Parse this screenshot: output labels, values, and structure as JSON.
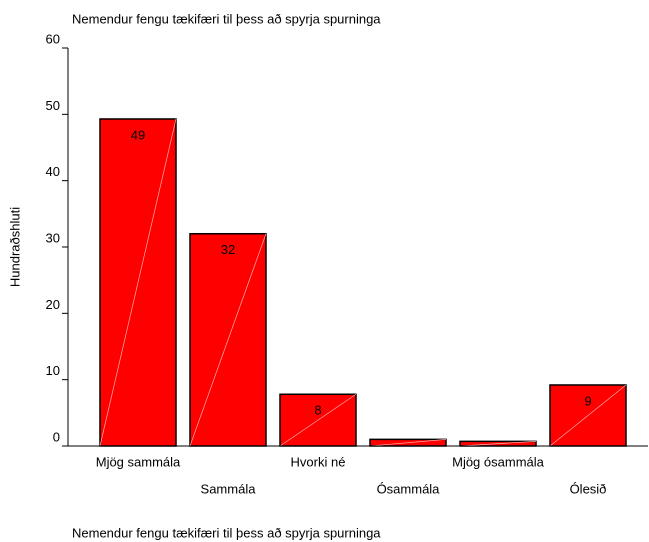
{
  "chart_data": {
    "type": "bar",
    "title": "Nemendur fengu tækifæri til þess að spyrja spurninga",
    "footnote": "Nemendur fengu tækifæri til þess að spyrja spurninga",
    "y_label": "Hundraðshluti",
    "categories": [
      "Mjög sammála",
      "Sammála",
      "Hvorki né",
      "Ósammála",
      "Mjög ósammála",
      "Ólesið"
    ],
    "values": [
      49.3,
      32.0,
      7.8,
      1.0,
      0.7,
      9.2
    ],
    "value_labels": [
      "49",
      "32",
      "8",
      null,
      null,
      "9"
    ],
    "color": "#ff0000",
    "ylim": [
      0,
      60
    ],
    "yticks": [
      0,
      10,
      20,
      30,
      40,
      50,
      60
    ]
  }
}
